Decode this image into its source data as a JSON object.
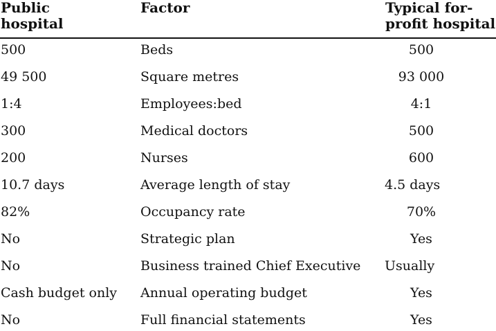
{
  "headers": {
    "public_line1": "Public",
    "public_line2": "hospital",
    "factor": "Factor",
    "forprofit_line1": "Typical for-",
    "forprofit_line2": "profit hospital"
  },
  "rows": [
    {
      "public": "500",
      "factor": "Beds",
      "forprofit": "500"
    },
    {
      "public": "49 500",
      "factor": "Square metres",
      "forprofit": "93 000"
    },
    {
      "public": "1:4",
      "factor": "Employees:bed",
      "forprofit": "4:1"
    },
    {
      "public": "300",
      "factor": "Medical doctors",
      "forprofit": "500"
    },
    {
      "public": "200",
      "factor": "Nurses",
      "forprofit": "600"
    },
    {
      "public": "10.7 days",
      "factor": "Average length of stay",
      "forprofit": "4.5 days"
    },
    {
      "public": "82%",
      "factor": "Occupancy rate",
      "forprofit": "70%"
    },
    {
      "public": "No",
      "factor": "Strategic plan",
      "forprofit": "Yes"
    },
    {
      "public": "No",
      "factor": "Business trained Chief Executive",
      "forprofit": "Usually"
    },
    {
      "public": "Cash budget only",
      "factor": "Annual operating budget",
      "forprofit": "Yes"
    },
    {
      "public": "No",
      "factor": "Full financial statements",
      "forprofit": "Yes"
    }
  ]
}
